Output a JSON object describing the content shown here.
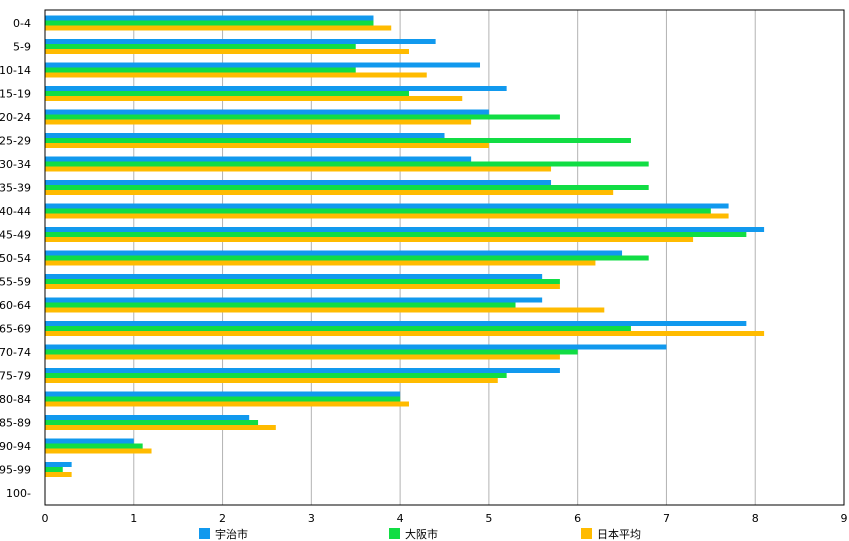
{
  "chart_data": {
    "type": "bar",
    "orientation": "horizontal",
    "categories": [
      "0-4",
      "5-9",
      "10-14",
      "15-19",
      "20-24",
      "25-29",
      "30-34",
      "35-39",
      "40-44",
      "45-49",
      "50-54",
      "55-59",
      "60-64",
      "65-69",
      "70-74",
      "75-79",
      "80-84",
      "85-89",
      "90-94",
      "95-99",
      "100-"
    ],
    "series": [
      {
        "name": "宇治市",
        "color": "#1199ee",
        "values": [
          3.7,
          4.4,
          4.9,
          5.2,
          5.0,
          4.5,
          4.8,
          5.7,
          7.7,
          8.1,
          6.5,
          5.6,
          5.6,
          7.9,
          7.0,
          5.8,
          4.0,
          2.3,
          1.0,
          0.3,
          0.0
        ]
      },
      {
        "name": "大阪市",
        "color": "#11dd44",
        "values": [
          3.7,
          3.5,
          3.5,
          4.1,
          5.8,
          6.6,
          6.8,
          6.8,
          7.5,
          7.9,
          6.8,
          5.8,
          5.3,
          6.6,
          6.0,
          5.2,
          4.0,
          2.4,
          1.1,
          0.2,
          0.0
        ]
      },
      {
        "name": "日本平均",
        "color": "#ffbb00",
        "values": [
          3.9,
          4.1,
          4.3,
          4.7,
          4.8,
          5.0,
          5.7,
          6.4,
          7.7,
          7.3,
          6.2,
          5.8,
          6.3,
          8.1,
          5.8,
          5.1,
          4.1,
          2.6,
          1.2,
          0.3,
          0.0
        ]
      }
    ],
    "xlim": [
      0,
      9
    ],
    "xticks": [
      "0",
      "1",
      "2",
      "3",
      "4",
      "5",
      "6",
      "7",
      "8",
      "9"
    ],
    "grid": true,
    "legend_position": "bottom"
  }
}
